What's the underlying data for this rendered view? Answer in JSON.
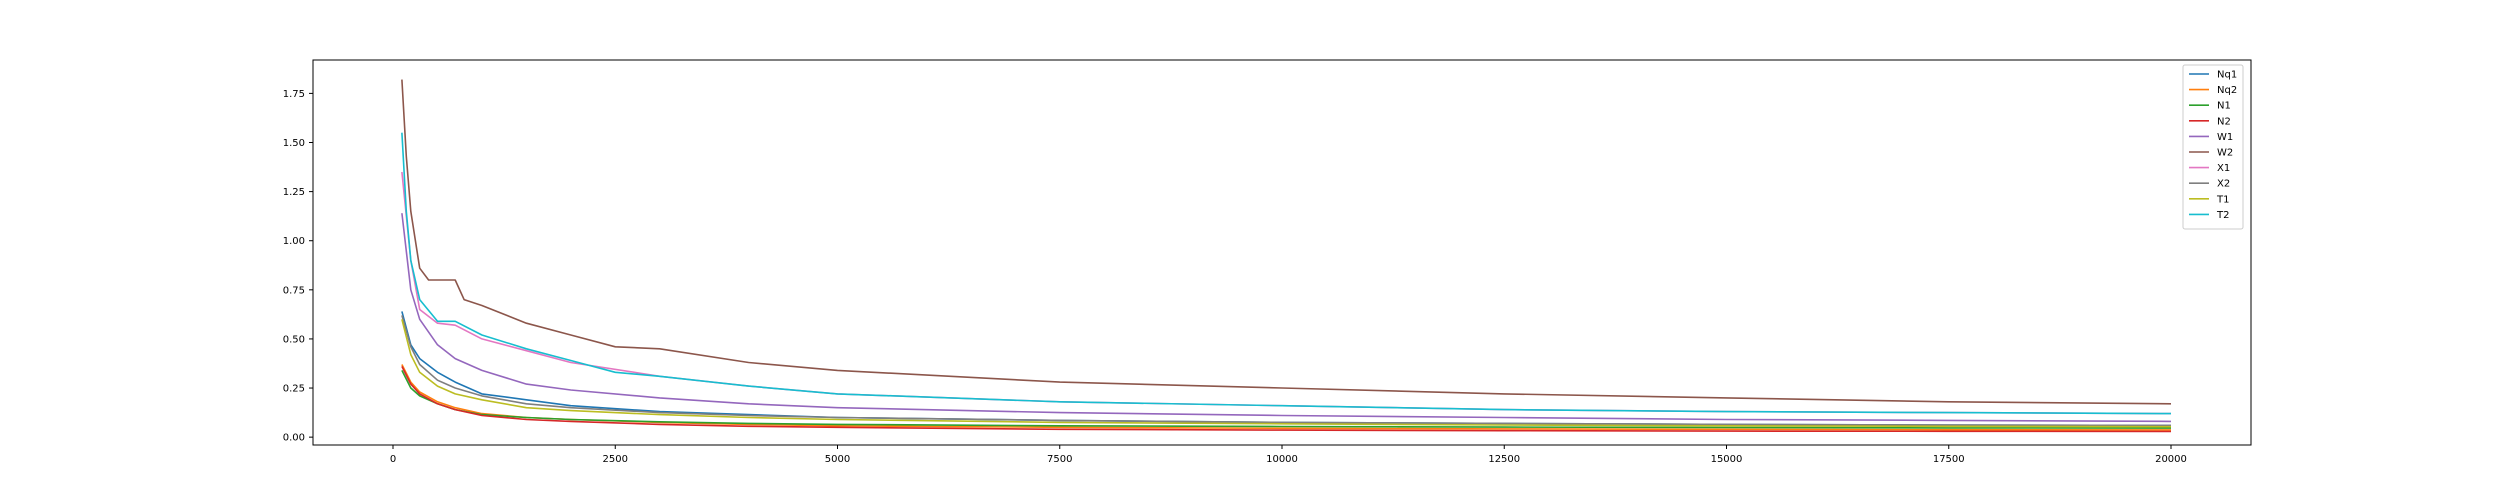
{
  "chart_data": {
    "type": "line",
    "title": "",
    "xlabel": "",
    "ylabel": "",
    "xlim": [
      -900,
      20900
    ],
    "ylim": [
      -0.04,
      1.92
    ],
    "xticks": [
      0,
      2500,
      5000,
      7500,
      10000,
      12500,
      15000,
      17500,
      20000
    ],
    "yticks": [
      0.0,
      0.25,
      0.5,
      0.75,
      1.0,
      1.25,
      1.5,
      1.75
    ],
    "xtick_labels": [
      "0",
      "2500",
      "5000",
      "7500",
      "10000",
      "12500",
      "15000",
      "17500",
      "20000"
    ],
    "ytick_labels": [
      "0.00",
      "0.25",
      "0.50",
      "0.75",
      "1.00",
      "1.25",
      "1.50",
      "1.75"
    ],
    "grid": false,
    "legend_position": "top-right",
    "series": [
      {
        "name": "Nq1",
        "color": "#1f77b4",
        "x": [
          100,
          200,
          300,
          500,
          700,
          1000,
          1500,
          2000,
          3000,
          4000,
          5000,
          7500,
          10000,
          12500,
          15000,
          17500,
          20000
        ],
        "y": [
          0.64,
          0.47,
          0.4,
          0.33,
          0.28,
          0.22,
          0.19,
          0.16,
          0.13,
          0.115,
          0.1,
          0.085,
          0.075,
          0.07,
          0.065,
          0.062,
          0.06
        ]
      },
      {
        "name": "Nq2",
        "color": "#ff7f0e",
        "x": [
          100,
          200,
          300,
          500,
          700,
          1000,
          1500,
          2000,
          3000,
          4000,
          5000,
          7500,
          10000,
          12500,
          15000,
          17500,
          20000
        ],
        "y": [
          0.37,
          0.28,
          0.23,
          0.18,
          0.15,
          0.12,
          0.1,
          0.09,
          0.075,
          0.065,
          0.058,
          0.05,
          0.045,
          0.042,
          0.04,
          0.038,
          0.037
        ]
      },
      {
        "name": "N1",
        "color": "#2ca02c",
        "x": [
          100,
          200,
          300,
          500,
          700,
          1000,
          1500,
          2000,
          3000,
          4000,
          5000,
          7500,
          10000,
          12500,
          15000,
          17500,
          20000
        ],
        "y": [
          0.34,
          0.25,
          0.21,
          0.17,
          0.14,
          0.115,
          0.1,
          0.09,
          0.078,
          0.07,
          0.065,
          0.058,
          0.054,
          0.051,
          0.049,
          0.047,
          0.046
        ]
      },
      {
        "name": "N2",
        "color": "#d62728",
        "x": [
          100,
          200,
          300,
          500,
          700,
          1000,
          1500,
          2000,
          3000,
          4000,
          5000,
          7500,
          10000,
          12500,
          15000,
          17500,
          20000
        ],
        "y": [
          0.36,
          0.27,
          0.22,
          0.17,
          0.14,
          0.11,
          0.09,
          0.08,
          0.065,
          0.055,
          0.05,
          0.04,
          0.036,
          0.033,
          0.031,
          0.03,
          0.029
        ]
      },
      {
        "name": "W1",
        "color": "#9467bd",
        "x": [
          100,
          200,
          300,
          500,
          700,
          1000,
          1500,
          2000,
          3000,
          4000,
          5000,
          7500,
          10000,
          12500,
          15000,
          17500,
          20000
        ],
        "y": [
          1.14,
          0.75,
          0.6,
          0.47,
          0.4,
          0.34,
          0.27,
          0.24,
          0.2,
          0.17,
          0.15,
          0.125,
          0.11,
          0.1,
          0.09,
          0.085,
          0.08
        ]
      },
      {
        "name": "W2",
        "color": "#8c564b",
        "x": [
          100,
          150,
          200,
          300,
          400,
          500,
          700,
          800,
          1000,
          1500,
          2000,
          2500,
          3000,
          4000,
          5000,
          7500,
          10000,
          12500,
          15000,
          17500,
          20000
        ],
        "y": [
          1.82,
          1.43,
          1.15,
          0.86,
          0.8,
          0.8,
          0.8,
          0.7,
          0.67,
          0.58,
          0.52,
          0.46,
          0.45,
          0.38,
          0.34,
          0.28,
          0.25,
          0.22,
          0.2,
          0.18,
          0.17
        ]
      },
      {
        "name": "X1",
        "color": "#e377c2",
        "x": [
          100,
          200,
          300,
          500,
          700,
          1000,
          1500,
          2000,
          3000,
          4000,
          5000,
          7500,
          10000,
          12500,
          15000,
          17500,
          20000
        ],
        "y": [
          1.35,
          0.9,
          0.65,
          0.58,
          0.57,
          0.5,
          0.44,
          0.38,
          0.31,
          0.26,
          0.22,
          0.18,
          0.16,
          0.14,
          0.13,
          0.125,
          0.12
        ]
      },
      {
        "name": "X2",
        "color": "#7f7f7f",
        "x": [
          100,
          200,
          300,
          500,
          700,
          1000,
          1500,
          2000,
          3000,
          4000,
          5000,
          7500,
          10000,
          12500,
          15000,
          17500,
          20000
        ],
        "y": [
          0.62,
          0.46,
          0.37,
          0.29,
          0.25,
          0.21,
          0.17,
          0.15,
          0.125,
          0.11,
          0.1,
          0.085,
          0.075,
          0.07,
          0.065,
          0.062,
          0.06
        ]
      },
      {
        "name": "T1",
        "color": "#bcbd22",
        "x": [
          100,
          200,
          300,
          500,
          700,
          1000,
          1500,
          2000,
          3000,
          4000,
          5000,
          7500,
          10000,
          12500,
          15000,
          17500,
          20000
        ],
        "y": [
          0.6,
          0.42,
          0.33,
          0.26,
          0.22,
          0.19,
          0.15,
          0.135,
          0.115,
          0.1,
          0.09,
          0.075,
          0.068,
          0.062,
          0.058,
          0.055,
          0.053
        ]
      },
      {
        "name": "T2",
        "color": "#17becf",
        "x": [
          100,
          150,
          200,
          300,
          500,
          700,
          1000,
          1500,
          2000,
          2500,
          3000,
          4000,
          5000,
          7500,
          10000,
          12500,
          15000,
          17500,
          20000
        ],
        "y": [
          1.55,
          1.15,
          0.9,
          0.7,
          0.59,
          0.59,
          0.52,
          0.45,
          0.39,
          0.33,
          0.31,
          0.26,
          0.22,
          0.18,
          0.16,
          0.14,
          0.13,
          0.125,
          0.12
        ]
      }
    ]
  }
}
